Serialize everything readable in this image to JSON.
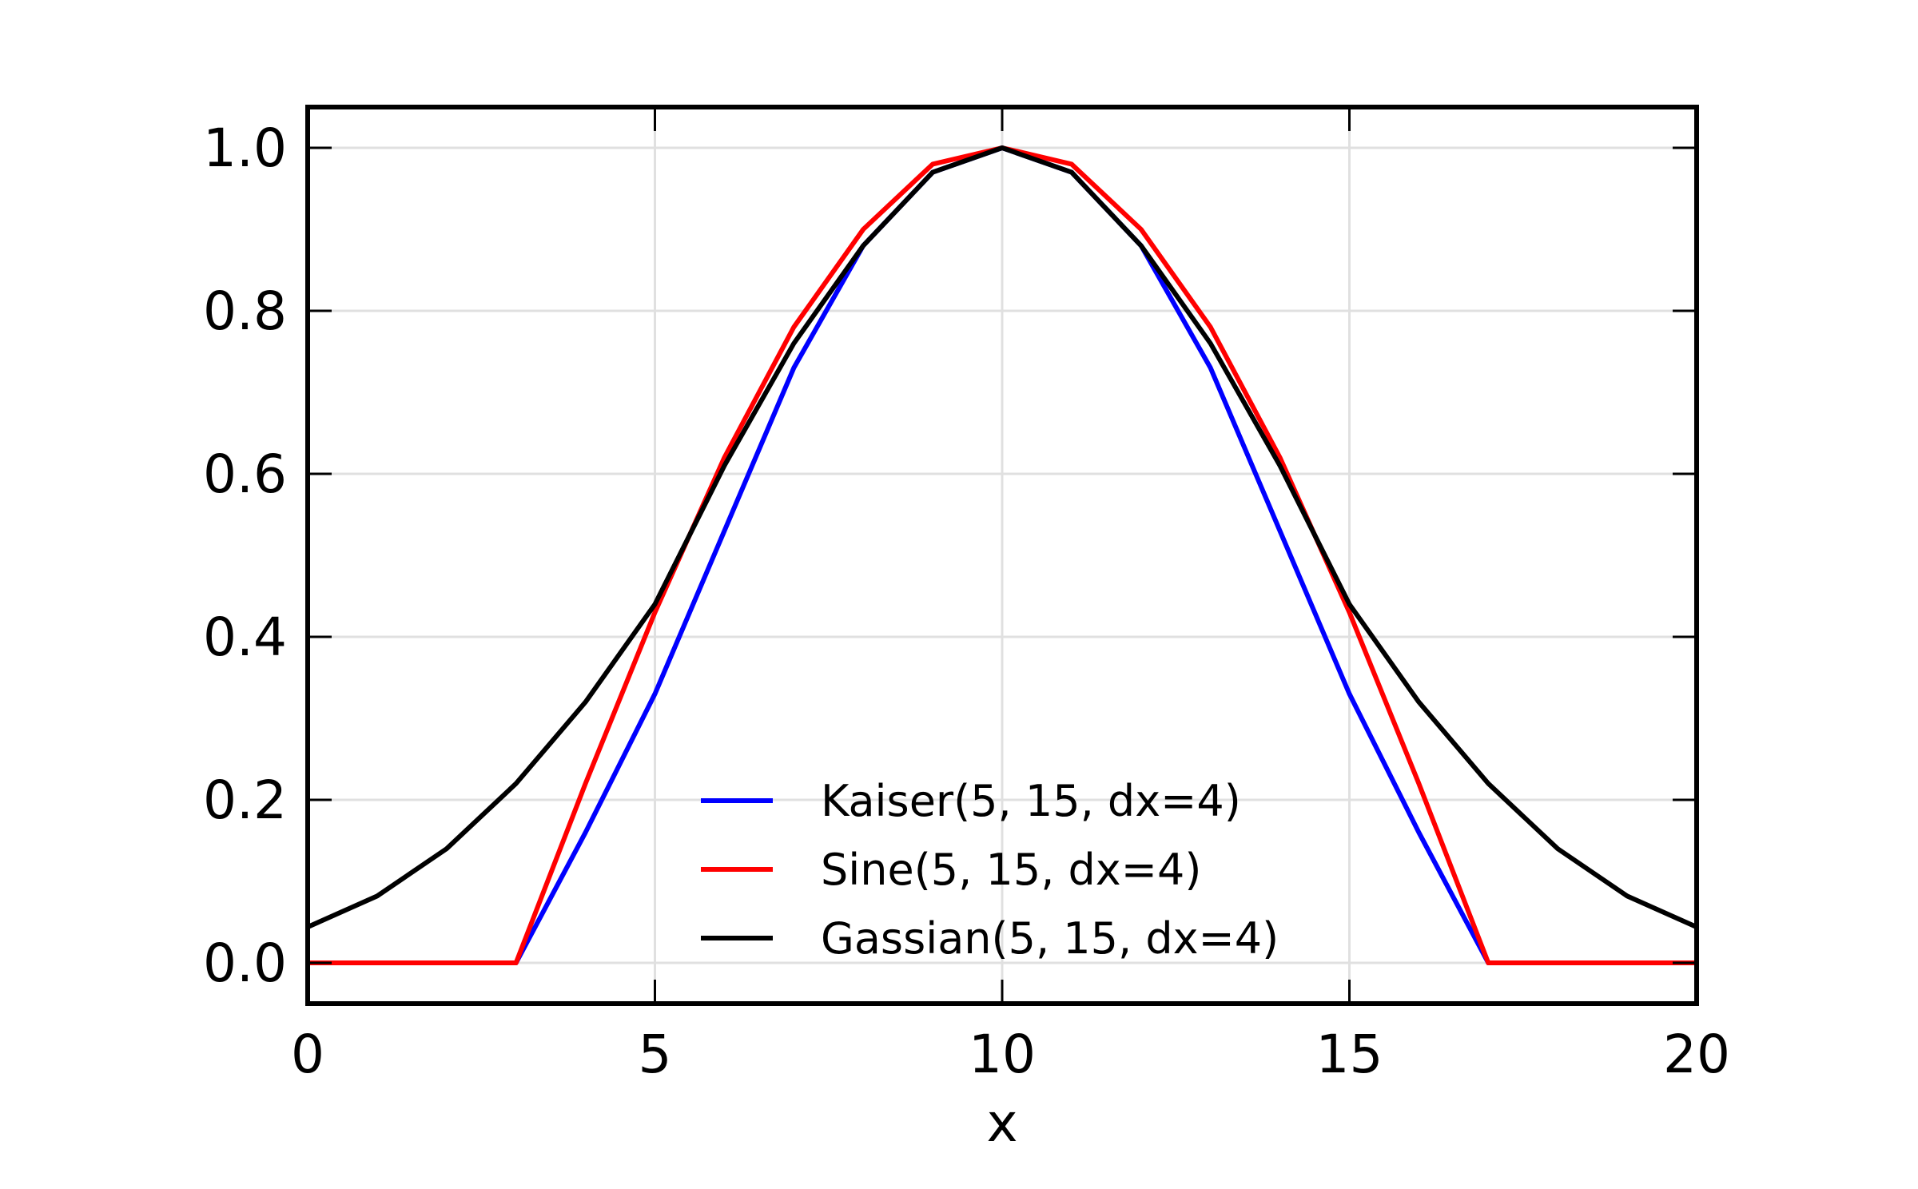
{
  "chart_data": {
    "type": "line",
    "title": "",
    "xlabel": "x",
    "ylabel": "",
    "xlim": [
      0,
      20
    ],
    "ylim": [
      -0.05,
      1.05
    ],
    "xticks": [
      0,
      5,
      10,
      15,
      20
    ],
    "xtick_labels": [
      "0",
      "5",
      "10",
      "15",
      "20"
    ],
    "yticks": [
      0.0,
      0.2,
      0.4,
      0.6,
      0.8,
      1.0
    ],
    "ytick_labels": [
      "0.0",
      "0.2",
      "0.4",
      "0.6",
      "0.8",
      "1.0"
    ],
    "grid": true,
    "legend_position": "lower-center",
    "x": [
      0,
      1,
      2,
      3,
      4,
      5,
      6,
      7,
      8,
      9,
      10,
      11,
      12,
      13,
      14,
      15,
      16,
      17,
      18,
      19,
      20
    ],
    "series": [
      {
        "name": "Kaiser(5, 15, dx=4)",
        "color": "#0000ff",
        "values": [
          0,
          0,
          0,
          0,
          0.16,
          0.33,
          0.53,
          0.73,
          0.88,
          0.97,
          1.0,
          0.97,
          0.88,
          0.73,
          0.53,
          0.33,
          0.16,
          0,
          0,
          0,
          0
        ]
      },
      {
        "name": "Sine(5, 15, dx=4)",
        "color": "#ff0000",
        "values": [
          0,
          0,
          0,
          0,
          0.22,
          0.43,
          0.62,
          0.78,
          0.9,
          0.98,
          1.0,
          0.98,
          0.9,
          0.78,
          0.62,
          0.43,
          0.22,
          0,
          0,
          0,
          0
        ]
      },
      {
        "name": "Gassian(5, 15, dx=4)",
        "color": "#000000",
        "values": [
          0.044,
          0.082,
          0.14,
          0.22,
          0.32,
          0.44,
          0.61,
          0.76,
          0.88,
          0.97,
          1.0,
          0.97,
          0.88,
          0.76,
          0.61,
          0.44,
          0.32,
          0.22,
          0.14,
          0.082,
          0.044
        ]
      }
    ]
  }
}
